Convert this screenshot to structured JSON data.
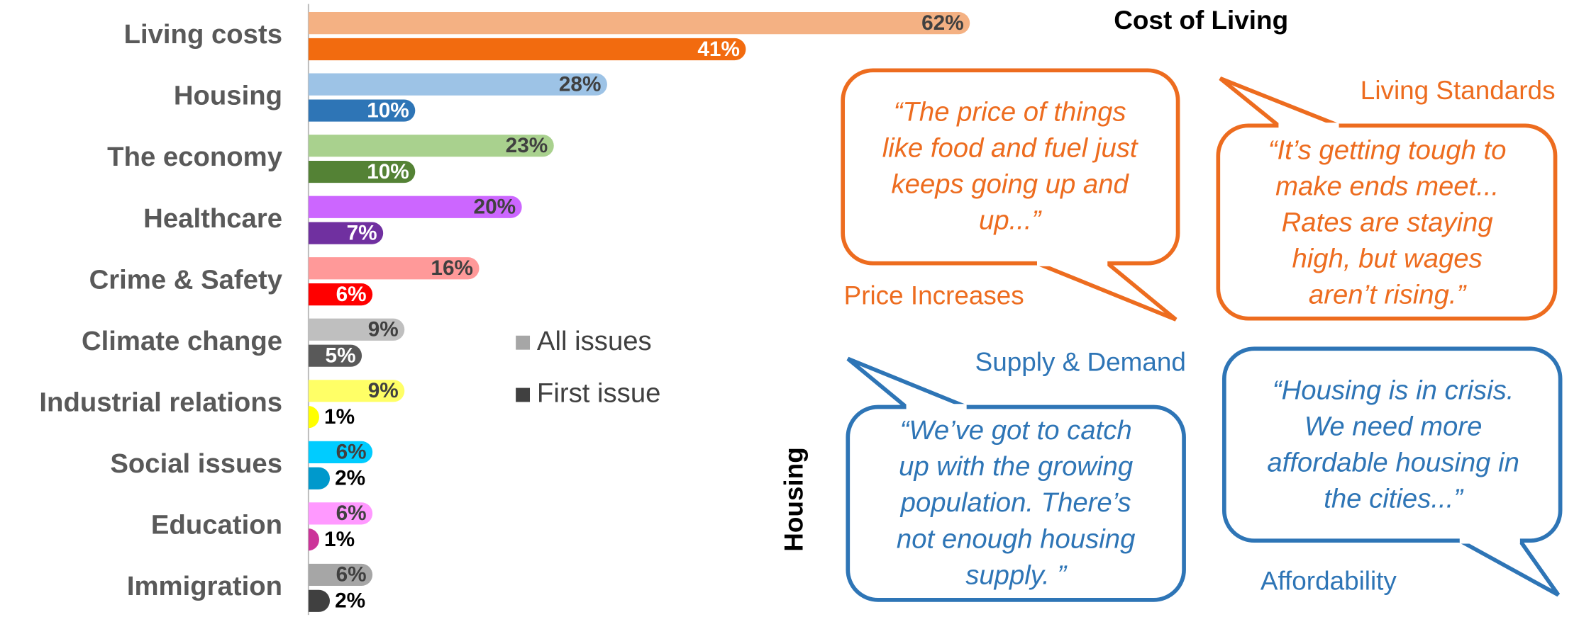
{
  "chart_data": {
    "type": "bar",
    "orientation": "horizontal",
    "categories": [
      "Living costs",
      "Housing",
      "The economy",
      "Healthcare",
      "Crime & Safety",
      "Climate change",
      "Industrial relations",
      "Social issues",
      "Education",
      "Immigration"
    ],
    "series": [
      {
        "name": "All issues",
        "color": "#a6a6a6",
        "bar_colors": [
          "#f4b183",
          "#9dc3e6",
          "#a9d18e",
          "#cc66ff",
          "#ff9999",
          "#bfbfbf",
          "#ffff66",
          "#00ccff",
          "#ff99ff",
          "#a6a6a6"
        ],
        "values": [
          62,
          28,
          23,
          20,
          16,
          9,
          9,
          6,
          6,
          6
        ],
        "value_labels": [
          "62%",
          "28%",
          "23%",
          "20%",
          "16%",
          "9%",
          "9%",
          "6%",
          "6%",
          "6%"
        ]
      },
      {
        "name": "First issue",
        "color": "#404040",
        "bar_colors": [
          "#f26b0f",
          "#2e75b6",
          "#548235",
          "#7030a0",
          "#ff0000",
          "#595959",
          "#ffff00",
          "#0099cc",
          "#cc3399",
          "#404040"
        ],
        "values": [
          41,
          10,
          10,
          7,
          6,
          5,
          1,
          2,
          1,
          2
        ],
        "value_labels": [
          "41%",
          "10%",
          "10%",
          "7%",
          "6%",
          "5%",
          "1%",
          "2%",
          "1%",
          "2%"
        ]
      }
    ],
    "annotations": {
      "section_cost": "Cost of Living",
      "section_housing": "Housing",
      "callouts": [
        {
          "label": "Price Increases",
          "color": "#ed6c1f",
          "quote": [
            "“The price of things",
            "like food and fuel just",
            "keeps going up and",
            "up...”"
          ]
        },
        {
          "label": "Living Standards",
          "color": "#ed6c1f",
          "quote": [
            "“It’s getting tough to",
            "make ends meet...",
            "Rates are staying",
            "high, but wages",
            "aren’t rising.”"
          ]
        },
        {
          "label": "Supply & Demand",
          "color": "#2e75b6",
          "quote": [
            "“We’ve got to catch",
            "up with the growing",
            "population. There’s",
            "not enough housing",
            "supply. ”"
          ]
        },
        {
          "label": "Affordability",
          "color": "#2e75b6",
          "quote": [
            "“Housing is in crisis.",
            "We need more",
            "affordable housing in",
            "the cities...”"
          ]
        }
      ]
    }
  }
}
